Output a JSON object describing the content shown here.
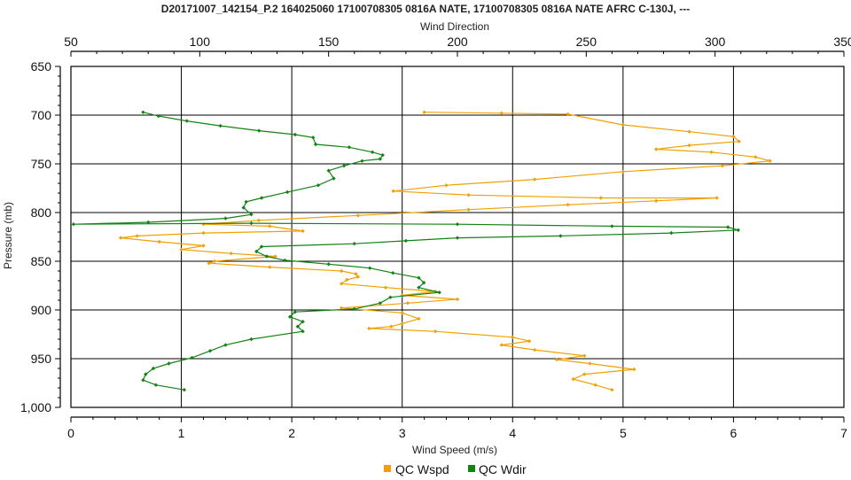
{
  "chart_data": {
    "type": "line",
    "title": "D20171007_142154_P.2 164025060 17100708305 0816A NATE, 17100708305 0816A NATE AFRC C-130J, ---",
    "top_axis": {
      "label": "Wind Direction",
      "min": 50,
      "max": 350,
      "ticks": [
        50,
        100,
        150,
        200,
        250,
        300,
        350
      ]
    },
    "bottom_axis": {
      "label": "Wind Speed (m/s)",
      "min": 0,
      "max": 7,
      "ticks": [
        0,
        1,
        2,
        3,
        4,
        5,
        6,
        7
      ]
    },
    "left_axis": {
      "label": "Pressure (mb)",
      "min": 650,
      "max": 1000,
      "inverted": true,
      "ticks": [
        650,
        700,
        750,
        800,
        850,
        900,
        950,
        1000
      ],
      "tick_labels": [
        "650",
        "700",
        "750",
        "800",
        "850",
        "900",
        "950",
        "1,000"
      ]
    },
    "grid": true,
    "legend_position": "bottom-center",
    "series": [
      {
        "name": "QC Wspd",
        "color": "#f0a000",
        "axis": "bottom",
        "points": [
          [
            3.2,
            697
          ],
          [
            3.9,
            698
          ],
          [
            4.5,
            699
          ],
          [
            5.0,
            710
          ],
          [
            5.6,
            717
          ],
          [
            6.0,
            722
          ],
          [
            6.05,
            727
          ],
          [
            5.6,
            731
          ],
          [
            5.3,
            735
          ],
          [
            5.8,
            738
          ],
          [
            6.2,
            743
          ],
          [
            6.33,
            747
          ],
          [
            5.9,
            752
          ],
          [
            5.0,
            758
          ],
          [
            4.2,
            766
          ],
          [
            3.4,
            772
          ],
          [
            2.92,
            778
          ],
          [
            3.6,
            782
          ],
          [
            4.8,
            785
          ],
          [
            5.85,
            785
          ],
          [
            5.3,
            788
          ],
          [
            4.5,
            792
          ],
          [
            3.6,
            797
          ],
          [
            2.6,
            803
          ],
          [
            1.7,
            808
          ],
          [
            1.2,
            812
          ],
          [
            1.8,
            814
          ],
          [
            2.1,
            819
          ],
          [
            1.2,
            821
          ],
          [
            0.6,
            824
          ],
          [
            0.45,
            826
          ],
          [
            0.8,
            830
          ],
          [
            1.2,
            834
          ],
          [
            1.0,
            838
          ],
          [
            1.45,
            842
          ],
          [
            1.85,
            845
          ],
          [
            1.3,
            850
          ],
          [
            1.25,
            852
          ],
          [
            1.8,
            856
          ],
          [
            2.45,
            860
          ],
          [
            2.58,
            863
          ],
          [
            2.6,
            866
          ],
          [
            2.5,
            869
          ],
          [
            2.45,
            873
          ],
          [
            2.85,
            877
          ],
          [
            3.3,
            881
          ],
          [
            3.0,
            885
          ],
          [
            3.5,
            889
          ],
          [
            3.05,
            893
          ],
          [
            2.45,
            898
          ],
          [
            3.0,
            903
          ],
          [
            3.15,
            909
          ],
          [
            3.0,
            914
          ],
          [
            2.9,
            917
          ],
          [
            2.7,
            919
          ],
          [
            3.3,
            922
          ],
          [
            4.0,
            928
          ],
          [
            4.15,
            932
          ],
          [
            3.9,
            936
          ],
          [
            4.2,
            941
          ],
          [
            4.65,
            947
          ],
          [
            4.4,
            951
          ],
          [
            4.7,
            955
          ],
          [
            5.1,
            961
          ],
          [
            4.65,
            966
          ],
          [
            4.55,
            971
          ],
          [
            4.75,
            977
          ],
          [
            4.9,
            982
          ]
        ]
      },
      {
        "name": "QC Wdir",
        "color": "#148214",
        "axis": "top",
        "points": [
          [
            78,
            697
          ],
          [
            84,
            701
          ],
          [
            95,
            706
          ],
          [
            108,
            711
          ],
          [
            123,
            716
          ],
          [
            137,
            720
          ],
          [
            144,
            723
          ],
          [
            145,
            730
          ],
          [
            158,
            733
          ],
          [
            167,
            738
          ],
          [
            171,
            741
          ],
          [
            170,
            745
          ],
          [
            163,
            747
          ],
          [
            156,
            752
          ],
          [
            150,
            757
          ],
          [
            152,
            765
          ],
          [
            146,
            772
          ],
          [
            134,
            779
          ],
          [
            124,
            785
          ],
          [
            118,
            789
          ],
          [
            117,
            795
          ],
          [
            120,
            802
          ],
          [
            110,
            806
          ],
          [
            80,
            810
          ],
          [
            51,
            812
          ],
          [
            120,
            811
          ],
          [
            200,
            812
          ],
          [
            260,
            814
          ],
          [
            305,
            815
          ],
          [
            309,
            818
          ],
          [
            283,
            821
          ],
          [
            240,
            824
          ],
          [
            200,
            826
          ],
          [
            180,
            829
          ],
          [
            160,
            832
          ],
          [
            124,
            835
          ],
          [
            122,
            840
          ],
          [
            126,
            845
          ],
          [
            133,
            849
          ],
          [
            150,
            853
          ],
          [
            166,
            857
          ],
          [
            175,
            862
          ],
          [
            185,
            867
          ],
          [
            187,
            872
          ],
          [
            185,
            877
          ],
          [
            193,
            882
          ],
          [
            174,
            887
          ],
          [
            170,
            893
          ],
          [
            160,
            899
          ],
          [
            137,
            902
          ],
          [
            135,
            907
          ],
          [
            140,
            912
          ],
          [
            138,
            917
          ],
          [
            140,
            922
          ],
          [
            120,
            930
          ],
          [
            110,
            936
          ],
          [
            104,
            942
          ],
          [
            97,
            949
          ],
          [
            88,
            955
          ],
          [
            82,
            960
          ],
          [
            79,
            966
          ],
          [
            78,
            972
          ],
          [
            83,
            977
          ],
          [
            94,
            982
          ]
        ]
      }
    ],
    "legend": [
      {
        "label": "QC Wspd",
        "color": "#f0a000"
      },
      {
        "label": "QC Wdir",
        "color": "#148214"
      }
    ]
  }
}
